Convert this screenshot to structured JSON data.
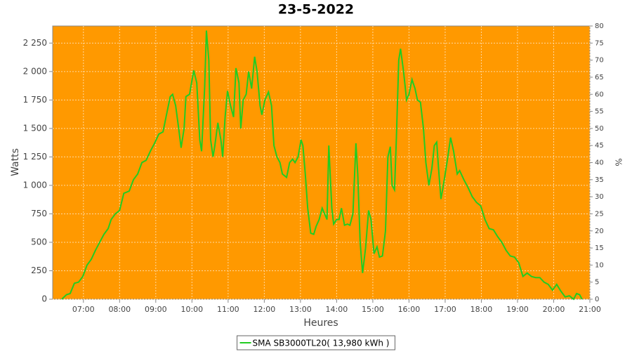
{
  "chart_data": {
    "type": "line",
    "title": "23-5-2022",
    "x_label": "Heures",
    "y_label": "Watts",
    "y2_label": "%",
    "xlim": [
      369,
      1260
    ],
    "xticks": [
      {
        "value": 420,
        "label": "07:00"
      },
      {
        "value": 480,
        "label": "08:00"
      },
      {
        "value": 540,
        "label": "09:00"
      },
      {
        "value": 600,
        "label": "10:00"
      },
      {
        "value": 660,
        "label": "11:00"
      },
      {
        "value": 720,
        "label": "12:00"
      },
      {
        "value": 780,
        "label": "13:00"
      },
      {
        "value": 840,
        "label": "14:00"
      },
      {
        "value": 900,
        "label": "15:00"
      },
      {
        "value": 960,
        "label": "16:00"
      },
      {
        "value": 1020,
        "label": "17:00"
      },
      {
        "value": 1080,
        "label": "18:00"
      },
      {
        "value": 1140,
        "label": "19:00"
      },
      {
        "value": 1200,
        "label": "20:00"
      },
      {
        "value": 1260,
        "label": "21:00"
      }
    ],
    "ylim": [
      0,
      2400
    ],
    "yticks": [
      0,
      250,
      500,
      750,
      {
        "value": 1000,
        "label": "1 000"
      },
      {
        "value": 1250,
        "label": "1 250"
      },
      {
        "value": 1500,
        "label": "1 500"
      },
      {
        "value": 1750,
        "label": "1 750"
      },
      {
        "value": 2000,
        "label": "2 000"
      },
      {
        "value": 2250,
        "label": "2 250"
      }
    ],
    "y2lim": [
      0,
      80
    ],
    "y2ticks": [
      0,
      5,
      10,
      15,
      20,
      25,
      30,
      35,
      40,
      45,
      50,
      55,
      60,
      65,
      70,
      75,
      80
    ],
    "grid": true,
    "background": "#ff9900",
    "legend": "bottom",
    "x": [
      384,
      392,
      398,
      405,
      412,
      419,
      426,
      433,
      440,
      447,
      454,
      461,
      466,
      473,
      480,
      487,
      496,
      503,
      510,
      517,
      524,
      531,
      538,
      545,
      552,
      557,
      564,
      568,
      573,
      578,
      582,
      587,
      590,
      596,
      603,
      608,
      613,
      616,
      621,
      624,
      628,
      631,
      635,
      638,
      643,
      648,
      651,
      655,
      659,
      664,
      669,
      673,
      678,
      681,
      685,
      690,
      694,
      699,
      704,
      708,
      713,
      716,
      721,
      727,
      732,
      736,
      741,
      746,
      750,
      757,
      762,
      767,
      771,
      776,
      781,
      784,
      788,
      792,
      797,
      802,
      806,
      811,
      816,
      820,
      824,
      827,
      832,
      835,
      840,
      844,
      848,
      853,
      858,
      862,
      867,
      872,
      875,
      879,
      883,
      888,
      893,
      897,
      902,
      907,
      911,
      916,
      921,
      925,
      929,
      932,
      936,
      939,
      943,
      946,
      951,
      956,
      960,
      965,
      970,
      974,
      979,
      984,
      988,
      993,
      998,
      1002,
      1006,
      1009,
      1013,
      1017,
      1023,
      1029,
      1034,
      1040,
      1044,
      1051,
      1058,
      1065,
      1072,
      1079,
      1086,
      1093,
      1100,
      1107,
      1114,
      1121,
      1128,
      1135,
      1142,
      1149,
      1156,
      1163,
      1170,
      1177,
      1184,
      1191,
      1198,
      1205,
      1212,
      1219,
      1226,
      1233,
      1238,
      1243,
      1247
    ],
    "series": [
      {
        "name": "SMA SB3000TL20( 13,980 kWh )",
        "color": "#22cc22",
        "values": [
          0,
          40,
          50,
          140,
          150,
          200,
          300,
          350,
          430,
          500,
          570,
          620,
          700,
          750,
          780,
          930,
          950,
          1050,
          1100,
          1200,
          1220,
          1300,
          1370,
          1450,
          1470,
          1600,
          1780,
          1800,
          1700,
          1500,
          1330,
          1500,
          1780,
          1800,
          2010,
          1900,
          1400,
          1300,
          1850,
          2360,
          2100,
          1400,
          1250,
          1350,
          1550,
          1400,
          1250,
          1600,
          1830,
          1700,
          1600,
          2030,
          1900,
          1500,
          1750,
          1800,
          2000,
          1850,
          2130,
          2000,
          1700,
          1620,
          1750,
          1820,
          1700,
          1350,
          1250,
          1200,
          1100,
          1070,
          1200,
          1230,
          1200,
          1250,
          1400,
          1350,
          1100,
          800,
          580,
          570,
          640,
          700,
          800,
          750,
          700,
          1350,
          800,
          660,
          700,
          700,
          800,
          650,
          660,
          650,
          750,
          1370,
          1100,
          500,
          230,
          450,
          780,
          700,
          400,
          460,
          370,
          380,
          600,
          1250,
          1340,
          1000,
          960,
          1400,
          2100,
          2200,
          2000,
          1750,
          1800,
          1930,
          1850,
          1750,
          1730,
          1500,
          1200,
          1000,
          1150,
          1350,
          1380,
          1150,
          880,
          1000,
          1200,
          1420,
          1300,
          1100,
          1130,
          1050,
          980,
          900,
          850,
          820,
          700,
          620,
          610,
          550,
          500,
          430,
          380,
          370,
          320,
          200,
          230,
          200,
          190,
          190,
          150,
          130,
          80,
          130,
          70,
          20,
          30,
          0,
          50,
          40,
          0
        ]
      }
    ]
  }
}
